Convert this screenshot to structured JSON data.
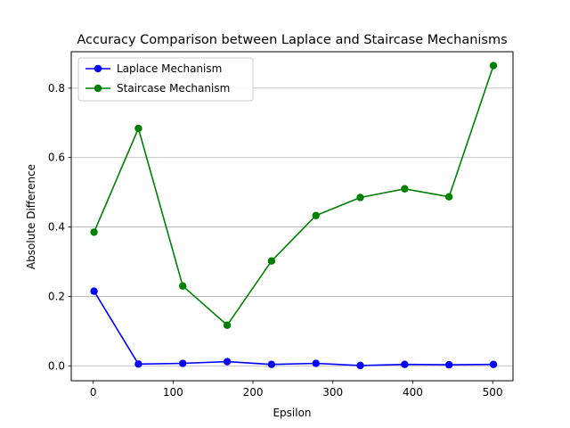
{
  "chart_data": {
    "type": "line",
    "title": "Accuracy Comparison between Laplace and Staircase Mechanisms",
    "xlabel": "Epsilon",
    "ylabel": "Absolute Difference",
    "xlim": [
      -27.5,
      525.5
    ],
    "ylim": [
      -0.043,
      0.905
    ],
    "xticks": [
      0,
      100,
      200,
      300,
      400,
      500
    ],
    "yticks": [
      0.0,
      0.2,
      0.4,
      0.6,
      0.8
    ],
    "xtick_labels": [
      "0",
      "100",
      "200",
      "300",
      "400",
      "500"
    ],
    "ytick_labels": [
      "0.0",
      "0.2",
      "0.4",
      "0.6",
      "0.8"
    ],
    "grid": "horizontal",
    "legend_position": "upper left",
    "x": [
      1,
      56.6,
      112.1,
      167.7,
      223.2,
      278.8,
      334.3,
      389.9,
      445.4,
      501
    ],
    "series": [
      {
        "name": "Laplace Mechanism",
        "color": "#0000ff",
        "marker": "circle",
        "values": [
          0.215,
          0.005,
          0.007,
          0.012,
          0.004,
          0.007,
          0.001,
          0.004,
          0.003,
          0.004
        ]
      },
      {
        "name": "Staircase Mechanism",
        "color": "#008000",
        "marker": "circle",
        "values": [
          0.385,
          0.684,
          0.23,
          0.117,
          0.302,
          0.433,
          0.485,
          0.51,
          0.487,
          0.865
        ]
      }
    ]
  }
}
